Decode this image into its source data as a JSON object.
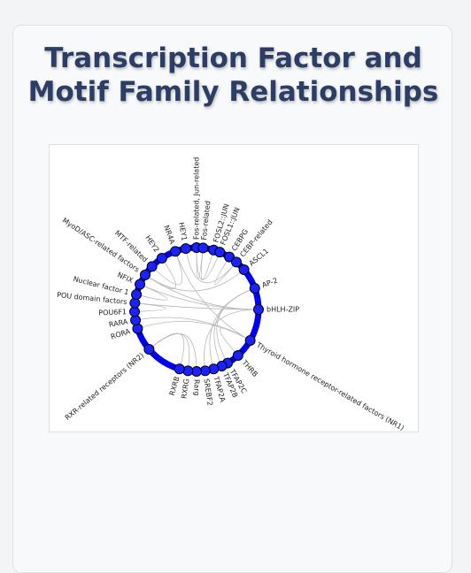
{
  "page": {
    "title": "Transcription Factor and Motif Family Relationships"
  },
  "diagram": {
    "type": "chord-network",
    "colors": {
      "ring": "#0000ee",
      "node": "#1a22ff",
      "node_stroke": "#000000",
      "link": "#b8b8b8"
    },
    "nodes": [
      {
        "id": "fos-jun",
        "label": "Fos-related, Jun-related",
        "angle": 90
      },
      {
        "id": "fos",
        "label": "Fos-related",
        "angle": 84
      },
      {
        "id": "fosl2jun",
        "label": "FOSL2::JUN",
        "angle": 74
      },
      {
        "id": "fosl1jun",
        "label": "FOSL1::JUN",
        "angle": 68
      },
      {
        "id": "cebpg",
        "label": "CEBPG",
        "angle": 58
      },
      {
        "id": "cebp",
        "label": "CEBP-related",
        "angle": 50
      },
      {
        "id": "ascl1",
        "label": "ASCL1",
        "angle": 40
      },
      {
        "id": "ap2",
        "label": "AP-2",
        "angle": 20
      },
      {
        "id": "bhlhzip",
        "label": "bHLH-ZIP",
        "angle": 0
      },
      {
        "id": "nr1",
        "label": "Thyroid hormone receptor-related factors (NR1)",
        "angle": -30
      },
      {
        "id": "thrb",
        "label": "THRB",
        "angle": -48
      },
      {
        "id": "tfap2c",
        "label": "TFAP2C",
        "angle": -60
      },
      {
        "id": "tfap2b",
        "label": "TFAP2B",
        "angle": -66
      },
      {
        "id": "tfap2a",
        "label": "TFAP2A",
        "angle": -74
      },
      {
        "id": "srebf2",
        "label": "SREBF2",
        "angle": -82
      },
      {
        "id": "rarg",
        "label": "Rarg",
        "angle": -90
      },
      {
        "id": "rxrg",
        "label": "RXRG",
        "angle": -98
      },
      {
        "id": "rxrb",
        "label": "RXRB",
        "angle": -106
      },
      {
        "id": "nr2",
        "label": "RXR-related receptors (NR2)",
        "angle": -140
      },
      {
        "id": "rora",
        "label": "RORA",
        "angle": -162
      },
      {
        "id": "rara",
        "label": "RARA",
        "angle": -170
      },
      {
        "id": "pou6f1",
        "label": "POU6F1",
        "angle": -178
      },
      {
        "id": "pou",
        "label": "POU domain factors",
        "angle": 174
      },
      {
        "id": "nf1",
        "label": "Nuclear factor 1",
        "angle": 166
      },
      {
        "id": "nfix",
        "label": "NFIX",
        "angle": 156
      },
      {
        "id": "myod",
        "label": "MyoD/ASC-related factors",
        "angle": 146
      },
      {
        "id": "mtf",
        "label": "MTF-related",
        "angle": 136
      },
      {
        "id": "hey2",
        "label": "HEY2",
        "angle": 124
      },
      {
        "id": "nr4a",
        "label": "NR4A",
        "angle": 110
      },
      {
        "id": "hey1",
        "label": "HEY1",
        "angle": 100
      }
    ],
    "links": [
      [
        "fos-jun",
        "fos"
      ],
      [
        "fos-jun",
        "fosl1jun"
      ],
      [
        "fos",
        "fosl2jun"
      ],
      [
        "cebp",
        "cebpg"
      ],
      [
        "bhlhzip",
        "myod"
      ],
      [
        "bhlhzip",
        "nfix"
      ],
      [
        "bhlhzip",
        "pou"
      ],
      [
        "nr1",
        "thrb"
      ],
      [
        "nr1",
        "rora"
      ],
      [
        "nr1",
        "rara"
      ],
      [
        "nr2",
        "rxrb"
      ],
      [
        "nr2",
        "rxrg"
      ],
      [
        "nr2",
        "rarg"
      ],
      [
        "ap2",
        "tfap2a"
      ],
      [
        "ap2",
        "tfap2b"
      ],
      [
        "ap2",
        "tfap2c"
      ],
      [
        "myod",
        "ascl1"
      ],
      [
        "myod",
        "hey2"
      ],
      [
        "pou",
        "pou6f1"
      ],
      [
        "nf1",
        "nfix"
      ],
      [
        "mtf",
        "nr4a"
      ],
      [
        "srebf2",
        "bhlhzip"
      ],
      [
        "hey1",
        "cebp"
      ],
      [
        "nr4a",
        "nr1"
      ]
    ]
  }
}
